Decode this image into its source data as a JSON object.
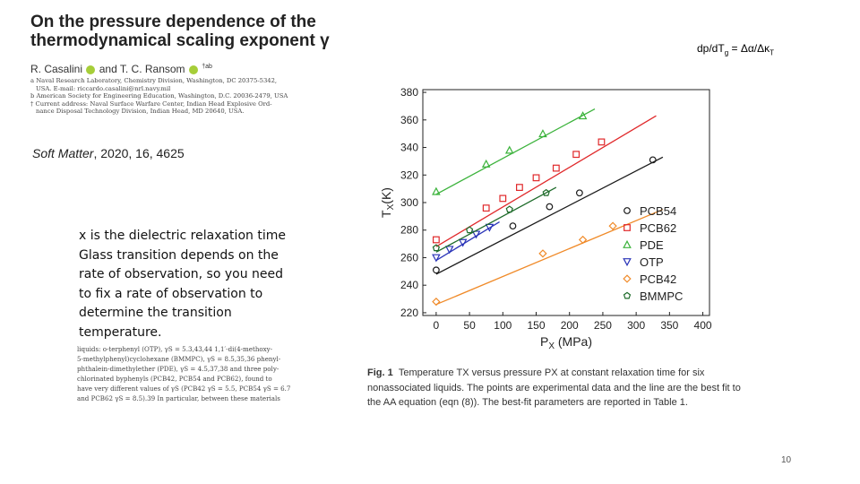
{
  "paper": {
    "title": "On the pressure dependence of the thermodynamical scaling exponent γ",
    "authors": [
      "R. Casalini",
      "and T. C. Ransom",
      "†ab"
    ],
    "affiliations": [
      "a Naval Research Laboratory, Chemistry Division, Washington, DC 20375-5342,",
      "USA. E-mail: riccardo.casalini@nrl.navy.mil",
      "b American Society for Engineering Education, Washington, D.C. 20036-2479, USA",
      "† Current address: Naval Surface Warfare Center, Indian Head Explosive Ord-",
      "nance Disposal Technology Division, Indian Head, MD 20640, USA."
    ],
    "citation_journal": "Soft Matter",
    "citation_rest": ", 2020, 16, 4625"
  },
  "formula": {
    "lhs_prefix": "dp/dT",
    "lhs_sub": "g",
    "rhs": " = Δα/Δκ",
    "rhs_sub": "T"
  },
  "note_lines": [
    "x is the dielectric relaxation time",
    "Glass transition depends on the",
    "rate of observation, so you need",
    "to fix a rate of observation to",
    "determine the transition",
    "temperature."
  ],
  "excerpt_lines": [
    "liquids: o-terphenyl (OTP), γS = 5.3,43,44 1,1′-di(4-methoxy-",
    "5-methylphenyl)cyclohexane (BMMPC), γS = 8.5,35,36 phenyl-",
    "phthalein-dimethylether (PDE), γS = 4.5,37,38 and three poly-",
    "chlorinated byphenyls (PCB42, PCB54 and PCB62), found to",
    "have very different values of γS (PCB42 γS = 5.5, PCB54 γS = 6.7",
    "and PCB62 γS = 8.5).39 In particular, between these materials"
  ],
  "caption": {
    "label": "Fig. 1",
    "text": "Temperature TX versus pressure PX at constant relaxation time for six nonassociated liquids. The points are experimental data and the line are the best fit to the AA equation (eqn (8)). The best-fit parameters are reported in Table 1."
  },
  "page_number": "10",
  "colors": {
    "PCB54": "#1a1a1a",
    "PCB62": "#e0282a",
    "PDE": "#3cb33c",
    "OTP": "#2a34b8",
    "PCB42": "#f08a28",
    "BMMPC": "#1e6b2a"
  },
  "chart_data": {
    "type": "scatter",
    "xlabel": "PX (MPa)",
    "ylabel": "TX(K)",
    "xlim": [
      -20,
      410
    ],
    "ylim": [
      218,
      382
    ],
    "xticks": [
      0,
      50,
      100,
      150,
      200,
      250,
      300,
      350,
      400
    ],
    "yticks": [
      220,
      240,
      260,
      280,
      300,
      320,
      340,
      360,
      380
    ],
    "legend_position": "bottom-right",
    "series": [
      {
        "name": "PCB54",
        "marker": "circle",
        "x": [
          0,
          115,
          170,
          215,
          325
        ],
        "y": [
          251,
          283,
          297,
          307,
          331
        ],
        "fit_x": [
          0,
          340
        ],
        "fit_y": [
          248,
          333
        ]
      },
      {
        "name": "PCB62",
        "marker": "square",
        "x": [
          0,
          75,
          100,
          125,
          150,
          180,
          210,
          248
        ],
        "y": [
          273,
          296,
          303,
          311,
          318,
          325,
          335,
          344
        ],
        "fit_x": [
          0,
          330
        ],
        "fit_y": [
          268,
          363
        ]
      },
      {
        "name": "PDE",
        "marker": "triangle-up",
        "x": [
          0,
          75,
          110,
          160,
          220
        ],
        "y": [
          308,
          328,
          338,
          350,
          363
        ],
        "fit_x": [
          0,
          238
        ],
        "fit_y": [
          306,
          368
        ]
      },
      {
        "name": "OTP",
        "marker": "triangle-down",
        "x": [
          0,
          20,
          40,
          60,
          80
        ],
        "y": [
          260,
          266,
          271,
          277,
          282
        ],
        "fit_x": [
          0,
          95
        ],
        "fit_y": [
          258,
          286
        ]
      },
      {
        "name": "PCB42",
        "marker": "diamond",
        "x": [
          0,
          160,
          220,
          265
        ],
        "y": [
          228,
          263,
          273,
          283
        ],
        "fit_x": [
          0,
          340
        ],
        "fit_y": [
          226,
          295
        ]
      },
      {
        "name": "BMMPC",
        "marker": "pentagon",
        "x": [
          0,
          50,
          110,
          165
        ],
        "y": [
          267,
          280,
          295,
          307
        ],
        "fit_x": [
          0,
          180
        ],
        "fit_y": [
          264,
          311
        ]
      }
    ]
  }
}
